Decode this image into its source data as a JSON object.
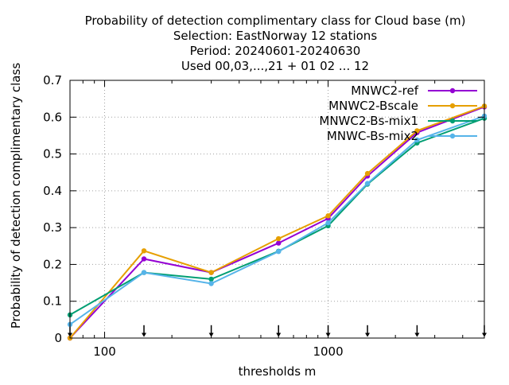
{
  "chart_data": {
    "type": "line",
    "title_lines": [
      "Probability of detection complimentary class  for Cloud base (m)",
      "Selection: EastNorway     12 stations",
      "Period: 20240601-20240630",
      "Used 00,03,...,21 + 01 02 ... 12"
    ],
    "xlabel": "thresholds m",
    "ylabel": "Probability of detection complimentary class",
    "x_scale": "log",
    "xlim": [
      70,
      5000
    ],
    "ylim": [
      0,
      0.7
    ],
    "x_ticks": [
      100,
      1000
    ],
    "x_tick_labels": [
      "100",
      "1000"
    ],
    "y_ticks": [
      0,
      0.1,
      0.2,
      0.3,
      0.4,
      0.5,
      0.6,
      0.7
    ],
    "y_tick_labels": [
      "0",
      "0.1",
      "0.2",
      "0.3",
      "0.4",
      "0.5",
      "0.6",
      "0.7"
    ],
    "grid": true,
    "legend_position": "top-right",
    "threshold_markers": [
      70,
      150,
      300,
      600,
      1000,
      1500,
      2500,
      5000
    ],
    "x": [
      70,
      150,
      300,
      600,
      1000,
      1500,
      2500,
      5000
    ],
    "series": [
      {
        "name": "MNWC2-ref",
        "color": "#9400d3",
        "values": [
          0.0,
          0.215,
          0.178,
          0.258,
          0.325,
          0.44,
          0.558,
          0.628
        ]
      },
      {
        "name": "MNWC2-Bscale",
        "color": "#e69f00",
        "values": [
          0.0,
          0.237,
          0.178,
          0.27,
          0.332,
          0.447,
          0.563,
          0.63
        ]
      },
      {
        "name": "MNWC2-Bs-mix1",
        "color": "#009e73",
        "values": [
          0.063,
          0.178,
          0.16,
          0.236,
          0.305,
          0.418,
          0.53,
          0.597
        ]
      },
      {
        "name": "MNWC-Bs-mix2",
        "color": "#56b4e9",
        "values": [
          0.037,
          0.178,
          0.148,
          0.235,
          0.313,
          0.42,
          0.538,
          0.603
        ]
      }
    ]
  }
}
